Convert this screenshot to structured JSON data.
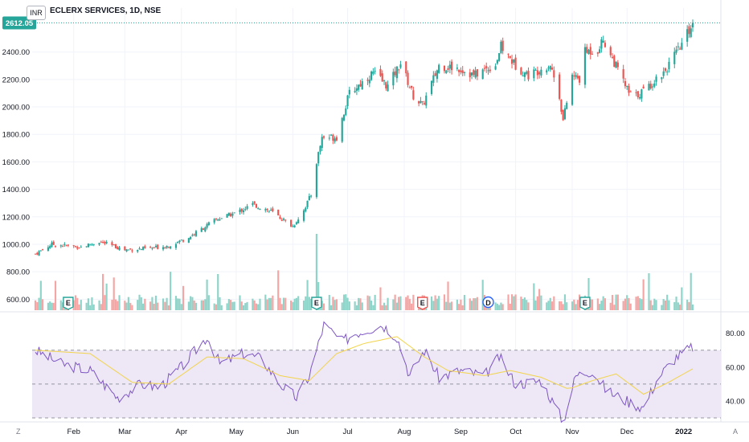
{
  "header": {
    "symbol_title": "ECLERX SERVICES, 1D, NSE",
    "currency": "INR",
    "left_corner": "Z",
    "right_corner": "A"
  },
  "colors": {
    "up": "#26a69a",
    "down": "#ef5350",
    "up_vol": "#8fd4c9",
    "down_vol": "#f5a5a3",
    "rsi_line": "#7e57c2",
    "rsi_ma": "#f2d44a",
    "rsi_band": "#ede7f6",
    "price_line": "#26a69a"
  },
  "chart_data": [
    {
      "type": "candlestick",
      "title": "ECLERX SERVICES, 1D, NSE",
      "current_price": 2612.05,
      "current_price_label": "2612.05",
      "yticks": [
        "600.00",
        "800.00",
        "1000.00",
        "1200.00",
        "1400.00",
        "1600.00",
        "1800.00",
        "2000.00",
        "2200.00",
        "2400.00"
      ],
      "ylim": [
        520,
        2720
      ],
      "xticks": [
        "Feb",
        "Mar",
        "Apr",
        "May",
        "Jun",
        "Jul",
        "Aug",
        "Sep",
        "Oct",
        "Nov",
        "Dec",
        "2022"
      ],
      "x_range": [
        "2021-01-11",
        "2022-01-06"
      ],
      "close_path": [
        [
          "2021-01-11",
          930
        ],
        [
          "2021-01-20",
          1000
        ],
        [
          "2021-02-05",
          980
        ],
        [
          "2021-02-15",
          1020
        ],
        [
          "2021-03-01",
          960
        ],
        [
          "2021-03-15",
          970
        ],
        [
          "2021-03-25",
          990
        ],
        [
          "2021-04-05",
          1050
        ],
        [
          "2021-04-20",
          1180
        ],
        [
          "2021-05-01",
          1230
        ],
        [
          "2021-05-10",
          1290
        ],
        [
          "2021-05-20",
          1240
        ],
        [
          "2021-06-01",
          1130
        ],
        [
          "2021-06-07",
          1250
        ],
        [
          "2021-06-11",
          1360
        ],
        [
          "2021-06-14",
          1600
        ],
        [
          "2021-06-17",
          1780
        ],
        [
          "2021-06-25",
          1780
        ],
        [
          "2021-07-02",
          2100
        ],
        [
          "2021-07-15",
          2250
        ],
        [
          "2021-07-23",
          2150
        ],
        [
          "2021-07-30",
          2320
        ],
        [
          "2021-08-06",
          2080
        ],
        [
          "2021-08-11",
          2010
        ],
        [
          "2021-08-20",
          2300
        ],
        [
          "2021-08-31",
          2280
        ],
        [
          "2021-09-08",
          2230
        ],
        [
          "2021-09-20",
          2310
        ],
        [
          "2021-09-23",
          2440
        ],
        [
          "2021-10-01",
          2300
        ],
        [
          "2021-10-08",
          2230
        ],
        [
          "2021-10-20",
          2310
        ],
        [
          "2021-10-25",
          2080
        ],
        [
          "2021-10-27",
          1900
        ],
        [
          "2021-11-01",
          2230
        ],
        [
          "2021-11-05",
          2200
        ],
        [
          "2021-11-08",
          2400
        ],
        [
          "2021-11-15",
          2420
        ],
        [
          "2021-11-18",
          2490
        ],
        [
          "2021-11-26",
          2270
        ],
        [
          "2021-12-02",
          2100
        ],
        [
          "2021-12-06",
          2080
        ],
        [
          "2021-12-13",
          2150
        ],
        [
          "2021-12-22",
          2270
        ],
        [
          "2021-12-30",
          2430
        ],
        [
          "2022-01-06",
          2612.05
        ]
      ]
    },
    {
      "type": "bar",
      "title": "",
      "series": "volume",
      "events": [
        {
          "date": "2021-01-29",
          "label": "E",
          "kind": "earnings-up"
        },
        {
          "date": "2021-06-14",
          "label": "E",
          "kind": "earnings-up"
        },
        {
          "date": "2021-08-11",
          "label": "E",
          "kind": "earnings-down"
        },
        {
          "date": "2021-09-16",
          "label": "D",
          "kind": "dividend"
        },
        {
          "date": "2021-11-08",
          "label": "E",
          "kind": "earnings-up"
        }
      ]
    },
    {
      "type": "line",
      "title": "",
      "series": "RSI",
      "yticks": [
        "40.00",
        "60.00",
        "80.00"
      ],
      "ylim": [
        30,
        87
      ],
      "band": [
        30,
        70
      ],
      "midline": 50,
      "path": [
        [
          "2021-01-11",
          70
        ],
        [
          "2021-01-25",
          62
        ],
        [
          "2021-02-10",
          58
        ],
        [
          "2021-02-25",
          42
        ],
        [
          "2021-03-10",
          50
        ],
        [
          "2021-03-20",
          48
        ],
        [
          "2021-04-01",
          60
        ],
        [
          "2021-04-15",
          78
        ],
        [
          "2021-04-22",
          62
        ],
        [
          "2021-05-05",
          68
        ],
        [
          "2021-05-15",
          65
        ],
        [
          "2021-05-25",
          50
        ],
        [
          "2021-06-03",
          42
        ],
        [
          "2021-06-10",
          55
        ],
        [
          "2021-06-18",
          85
        ],
        [
          "2021-06-28",
          75
        ],
        [
          "2021-07-05",
          80
        ],
        [
          "2021-07-20",
          85
        ],
        [
          "2021-07-28",
          78
        ],
        [
          "2021-08-04",
          55
        ],
        [
          "2021-08-12",
          70
        ],
        [
          "2021-08-20",
          54
        ],
        [
          "2021-09-01",
          58
        ],
        [
          "2021-09-14",
          55
        ],
        [
          "2021-09-22",
          66
        ],
        [
          "2021-10-01",
          50
        ],
        [
          "2021-10-15",
          52
        ],
        [
          "2021-10-27",
          28
        ],
        [
          "2021-11-03",
          55
        ],
        [
          "2021-11-12",
          58
        ],
        [
          "2021-11-20",
          46
        ],
        [
          "2021-12-01",
          40
        ],
        [
          "2021-12-10",
          36
        ],
        [
          "2021-12-18",
          54
        ],
        [
          "2021-12-28",
          66
        ],
        [
          "2022-01-06",
          72
        ]
      ],
      "ma_path": [
        [
          "2021-01-11",
          70
        ],
        [
          "2021-02-10",
          68
        ],
        [
          "2021-03-05",
          51
        ],
        [
          "2021-03-25",
          50
        ],
        [
          "2021-04-15",
          66
        ],
        [
          "2021-05-05",
          65
        ],
        [
          "2021-05-25",
          55
        ],
        [
          "2021-06-10",
          52
        ],
        [
          "2021-06-25",
          68
        ],
        [
          "2021-07-10",
          74
        ],
        [
          "2021-07-28",
          78
        ],
        [
          "2021-08-12",
          66
        ],
        [
          "2021-08-25",
          58
        ],
        [
          "2021-09-14",
          55
        ],
        [
          "2021-09-28",
          58
        ],
        [
          "2021-10-15",
          54
        ],
        [
          "2021-10-30",
          47
        ],
        [
          "2021-11-12",
          52
        ],
        [
          "2021-11-25",
          56
        ],
        [
          "2021-12-10",
          44
        ],
        [
          "2021-12-22",
          50
        ],
        [
          "2022-01-06",
          59
        ]
      ]
    }
  ]
}
